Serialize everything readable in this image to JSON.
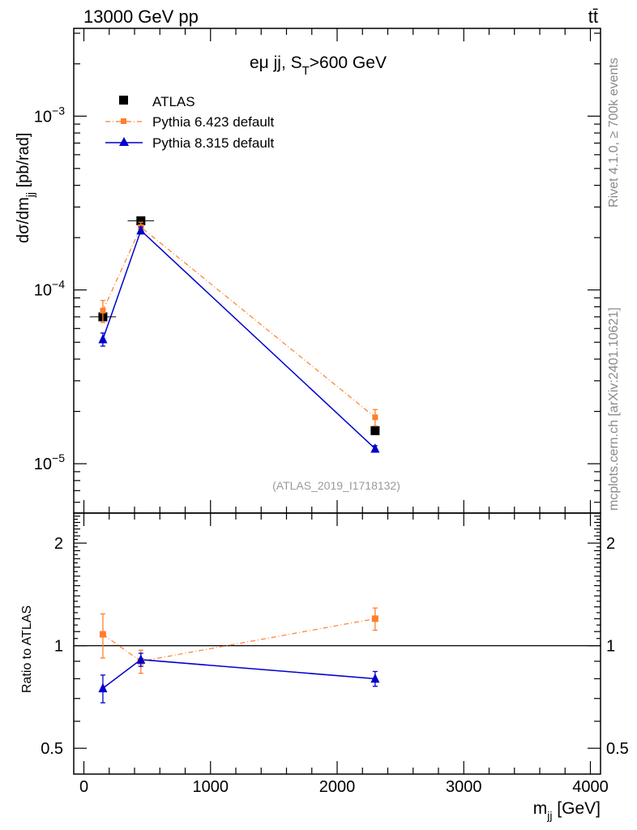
{
  "header": {
    "left": "13000 GeV pp",
    "right": "tt̄"
  },
  "side_labels": {
    "rivet": "Rivet 4.1.0, ≥ 700k events",
    "mcplots": "mcplots.cern.ch [arXiv:2401.10621]"
  },
  "plot_title": {
    "main": "eμ jj, S",
    "sub": "T",
    "rest": ">600 GeV"
  },
  "analysis_label": "(ATLAS_2019_I1718132)",
  "legend": [
    {
      "name": "ATLAS",
      "color": "#000000",
      "marker": "square-filled"
    },
    {
      "name": "Pythia 6.423 default",
      "color": "#ff7f2a",
      "marker": "square-small",
      "dash": "dashdot"
    },
    {
      "name": "Pythia 8.315 default",
      "color": "#0000cc",
      "marker": "triangle",
      "dash": "solid"
    }
  ],
  "colors": {
    "data": "#000000",
    "py6": "#ff7f2a",
    "py8": "#0000cc",
    "ref_line": "#000000",
    "frame": "#000000"
  },
  "chart_data": [
    {
      "type": "scatter",
      "panel": "main",
      "title": "eμ jj, S_T>600 GeV",
      "ylabel": {
        "main": "dσ/dm",
        "sub": "jj",
        "rest": " [pb/rad]"
      },
      "yscale": "log",
      "ylim": [
        5.2e-06,
        0.0032
      ],
      "xlim": [
        -80,
        4080
      ],
      "ytick_major": [
        1e-05,
        0.0001,
        0.001
      ],
      "ytick_labels": [
        {
          "base": "10",
          "exp": "−5"
        },
        {
          "base": "10",
          "exp": "−4"
        },
        {
          "base": "10",
          "exp": "−3"
        }
      ],
      "x": [
        150,
        450,
        2300
      ],
      "xerr": [
        75,
        75,
        0
      ],
      "series": [
        {
          "name": "ATLAS",
          "values": [
            7e-05,
            0.00025,
            1.55e-05
          ],
          "err": [
            3e-06,
            5e-06,
            5e-07
          ]
        },
        {
          "name": "Pythia 6.423 default",
          "values": [
            7.6e-05,
            0.00023,
            1.85e-05
          ],
          "err": [
            1.1e-05,
            1.5e-05,
            2e-06
          ]
        },
        {
          "name": "Pythia 8.315 default",
          "values": [
            5.2e-05,
            0.00022,
            1.22e-05
          ],
          "err": [
            4.5e-06,
            1e-05,
            5e-07
          ]
        }
      ]
    },
    {
      "type": "scatter",
      "panel": "ratio",
      "ylabel": "Ratio to ATLAS",
      "xlabel": {
        "main": "m",
        "sub": "jj",
        "rest": " [GeV]"
      },
      "yscale": "log",
      "ylim": [
        0.42,
        2.45
      ],
      "xlim": [
        -80,
        4080
      ],
      "ytick_labels": [
        "0.5",
        "1",
        "2"
      ],
      "ytick_values": [
        0.5,
        1,
        2
      ],
      "xtick_labels": [
        "0",
        "1000",
        "2000",
        "3000",
        "4000"
      ],
      "xtick_values": [
        0,
        1000,
        2000,
        3000,
        4000
      ],
      "reference": 1,
      "x": [
        150,
        450,
        2300
      ],
      "series": [
        {
          "name": "Pythia 6.423 default",
          "values": [
            1.08,
            0.9,
            1.2
          ],
          "err": [
            0.16,
            0.07,
            0.09
          ]
        },
        {
          "name": "Pythia 8.315 default",
          "values": [
            0.75,
            0.91,
            0.8
          ],
          "err": [
            0.07,
            0.04,
            0.04
          ]
        }
      ]
    }
  ]
}
